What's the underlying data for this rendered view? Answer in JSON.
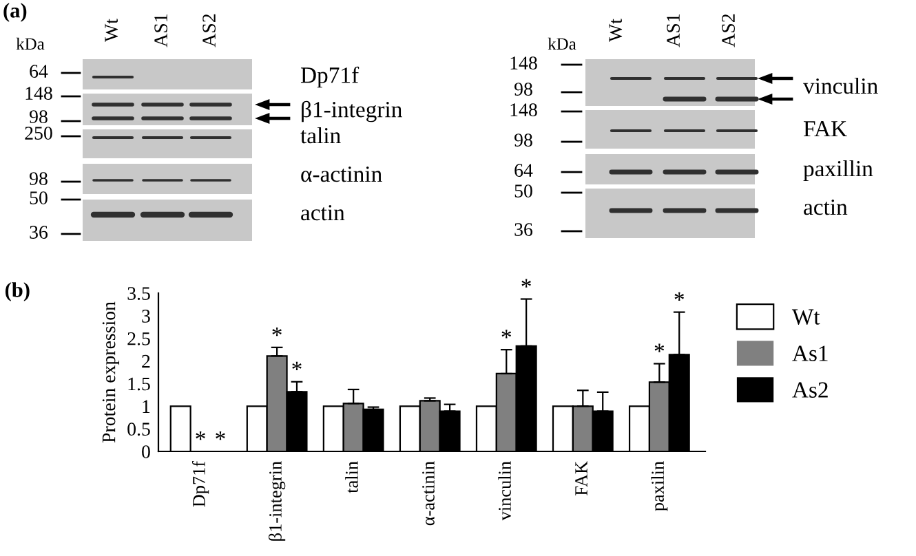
{
  "chart_data": [
    {
      "type": "other",
      "title": "(a)",
      "annotations": [
        "kDa",
        "Wt",
        "AS1",
        "AS2",
        "64",
        "148",
        "98",
        "250",
        "98",
        "50",
        "36",
        "Dp71f",
        "β1-integrin",
        "talin",
        "α-actinin",
        "actin",
        "kDa",
        "Wt",
        "AS1",
        "AS2",
        "148",
        "98",
        "148",
        "98",
        "64",
        "50",
        "36",
        "vinculin",
        "FAK",
        "paxillin",
        "actin"
      ]
    },
    {
      "type": "bar",
      "title": "(b)",
      "ylabel": "Protein expression",
      "categories": [
        "Dp71f",
        "β1-integrin",
        "talin",
        "α-actinin",
        "vinculin",
        "FAK",
        "paxilin"
      ],
      "series": [
        {
          "name": "Wt",
          "color": "#ffffff",
          "values": [
            1,
            1,
            1,
            1,
            1,
            1,
            1
          ]
        },
        {
          "name": "As1",
          "color": "#808080",
          "values": [
            0,
            2.11,
            1.06,
            1.12,
            1.72,
            1.0,
            1.53
          ],
          "errors": [
            null,
            0.19,
            0.31,
            0.06,
            0.53,
            0.35,
            0.41
          ],
          "value_labels": [
            "*",
            "*",
            null,
            null,
            "*",
            null,
            "*"
          ]
        },
        {
          "name": "As2",
          "color": "#000000",
          "values": [
            0,
            1.32,
            0.93,
            0.89,
            2.33,
            0.89,
            2.14
          ],
          "errors": [
            null,
            0.22,
            0.05,
            0.15,
            1.04,
            0.42,
            0.94
          ],
          "value_labels": [
            "*",
            "*",
            null,
            null,
            "*",
            null,
            "*"
          ]
        }
      ],
      "ylim": [
        0,
        3.5
      ],
      "yticks": [
        0,
        0.5,
        1,
        1.5,
        2,
        2.5,
        3,
        3.5
      ],
      "legend": "right",
      "grid": false
    }
  ]
}
